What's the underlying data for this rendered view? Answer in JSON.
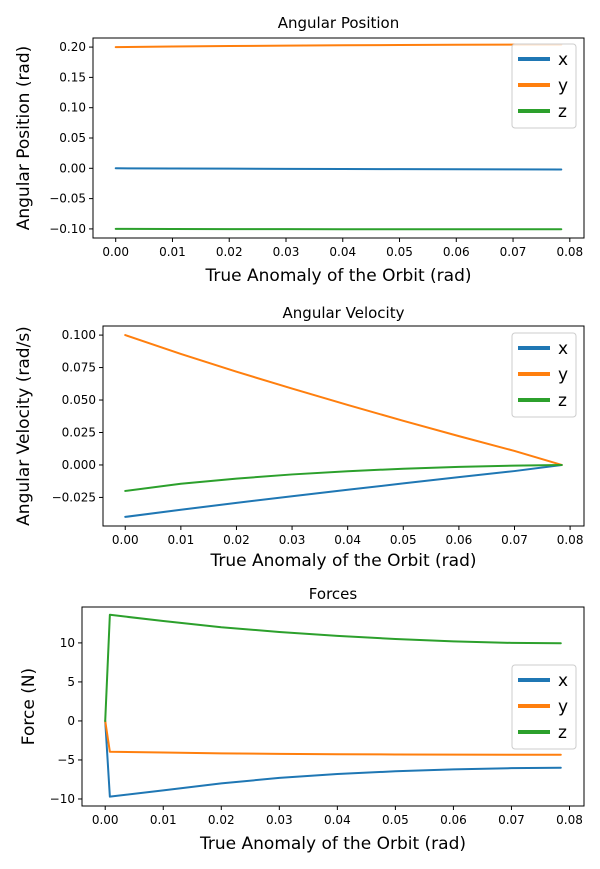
{
  "chart_data": [
    {
      "type": "line",
      "title": "Angular Position",
      "xlabel": "True Anomaly of the Orbit (rad)",
      "ylabel": "Angular Position (rad)",
      "xlim": [
        -0.004,
        0.0825
      ],
      "ylim": [
        -0.115,
        0.215
      ],
      "xticks": [
        0.0,
        0.01,
        0.02,
        0.03,
        0.04,
        0.05,
        0.06,
        0.07,
        0.08
      ],
      "xtick_labels": [
        "0.00",
        "0.01",
        "0.02",
        "0.03",
        "0.04",
        "0.05",
        "0.06",
        "0.07",
        "0.08"
      ],
      "yticks": [
        -0.1,
        -0.05,
        0.0,
        0.05,
        0.1,
        0.15,
        0.2
      ],
      "ytick_labels": [
        "−0.10",
        "−0.05",
        "0.00",
        "0.05",
        "0.10",
        "0.15",
        "0.20"
      ],
      "legend_position": "top-right",
      "grid": false,
      "series": [
        {
          "name": "x",
          "color": "#1f77b4",
          "x": [
            0,
            0.01,
            0.02,
            0.03,
            0.04,
            0.05,
            0.06,
            0.07,
            0.0785
          ],
          "y": [
            0.0,
            -0.0003,
            -0.0006,
            -0.0009,
            -0.0012,
            -0.0014,
            -0.0016,
            -0.0018,
            -0.0019
          ]
        },
        {
          "name": "y",
          "color": "#ff7f0e",
          "x": [
            0,
            0.01,
            0.02,
            0.03,
            0.04,
            0.05,
            0.06,
            0.07,
            0.0785
          ],
          "y": [
            0.2,
            0.2009,
            0.2017,
            0.2024,
            0.203,
            0.2035,
            0.2038,
            0.204,
            0.2041
          ]
        },
        {
          "name": "z",
          "color": "#2ca02c",
          "x": [
            0,
            0.01,
            0.02,
            0.03,
            0.04,
            0.05,
            0.06,
            0.07,
            0.0785
          ],
          "y": [
            -0.1,
            -0.1002,
            -0.1003,
            -0.1004,
            -0.1005,
            -0.1005,
            -0.1006,
            -0.1006,
            -0.1006
          ]
        }
      ]
    },
    {
      "type": "line",
      "title": "Angular Velocity",
      "xlabel": "True Anomaly of the Orbit (rad)",
      "ylabel": "Angular Velocity (rad/s)",
      "xlim": [
        -0.004,
        0.0825
      ],
      "ylim": [
        -0.047,
        0.107
      ],
      "xticks": [
        0.0,
        0.01,
        0.02,
        0.03,
        0.04,
        0.05,
        0.06,
        0.07,
        0.08
      ],
      "xtick_labels": [
        "0.00",
        "0.01",
        "0.02",
        "0.03",
        "0.04",
        "0.05",
        "0.06",
        "0.07",
        "0.08"
      ],
      "yticks": [
        -0.025,
        0.0,
        0.025,
        0.05,
        0.075,
        0.1
      ],
      "ytick_labels": [
        "−0.025",
        "0.000",
        "0.025",
        "0.050",
        "0.075",
        "0.100"
      ],
      "legend_position": "top-right",
      "grid": false,
      "series": [
        {
          "name": "x",
          "color": "#1f77b4",
          "x": [
            0,
            0.01,
            0.02,
            0.03,
            0.04,
            0.05,
            0.06,
            0.07,
            0.0785
          ],
          "y": [
            -0.04,
            -0.0345,
            -0.0292,
            -0.0241,
            -0.0191,
            -0.0142,
            -0.0094,
            -0.0047,
            0.0
          ]
        },
        {
          "name": "y",
          "color": "#ff7f0e",
          "x": [
            0,
            0.01,
            0.02,
            0.03,
            0.04,
            0.05,
            0.06,
            0.07,
            0.0785
          ],
          "y": [
            0.1,
            0.0855,
            0.0718,
            0.0588,
            0.0462,
            0.034,
            0.0222,
            0.0108,
            0.0
          ]
        },
        {
          "name": "z",
          "color": "#2ca02c",
          "x": [
            0,
            0.01,
            0.02,
            0.03,
            0.04,
            0.05,
            0.06,
            0.07,
            0.0785
          ],
          "y": [
            -0.02,
            -0.0145,
            -0.0105,
            -0.0073,
            -0.0048,
            -0.0029,
            -0.0015,
            -0.0005,
            0.0
          ]
        }
      ]
    },
    {
      "type": "line",
      "title": "Forces",
      "xlabel": "True Anomaly of the Orbit (rad)",
      "ylabel": "Force (N)",
      "xlim": [
        -0.004,
        0.0825
      ],
      "ylim": [
        -10.9,
        14.6
      ],
      "xticks": [
        0.0,
        0.01,
        0.02,
        0.03,
        0.04,
        0.05,
        0.06,
        0.07,
        0.08
      ],
      "xtick_labels": [
        "0.00",
        "0.01",
        "0.02",
        "0.03",
        "0.04",
        "0.05",
        "0.06",
        "0.07",
        "0.08"
      ],
      "yticks": [
        -10,
        -5,
        0,
        5,
        10
      ],
      "ytick_labels": [
        "−10",
        "−5",
        "0",
        "5",
        "10"
      ],
      "legend_position": "center-right",
      "grid": false,
      "series": [
        {
          "name": "x",
          "color": "#1f77b4",
          "x": [
            0,
            0.0008,
            0.01,
            0.02,
            0.03,
            0.04,
            0.05,
            0.06,
            0.07,
            0.0785
          ],
          "y": [
            0,
            -9.7,
            -8.9,
            -8.0,
            -7.3,
            -6.8,
            -6.45,
            -6.2,
            -6.05,
            -6.0
          ]
        },
        {
          "name": "y",
          "color": "#ff7f0e",
          "x": [
            0,
            0.0008,
            0.01,
            0.02,
            0.03,
            0.04,
            0.05,
            0.06,
            0.07,
            0.0785
          ],
          "y": [
            0,
            -3.95,
            -4.05,
            -4.15,
            -4.22,
            -4.27,
            -4.3,
            -4.32,
            -4.33,
            -4.33
          ]
        },
        {
          "name": "z",
          "color": "#2ca02c",
          "x": [
            0,
            0.0008,
            0.01,
            0.02,
            0.03,
            0.04,
            0.05,
            0.06,
            0.07,
            0.0785
          ],
          "y": [
            0,
            13.6,
            12.8,
            12.0,
            11.4,
            10.9,
            10.5,
            10.2,
            10.0,
            9.95
          ]
        }
      ]
    }
  ]
}
